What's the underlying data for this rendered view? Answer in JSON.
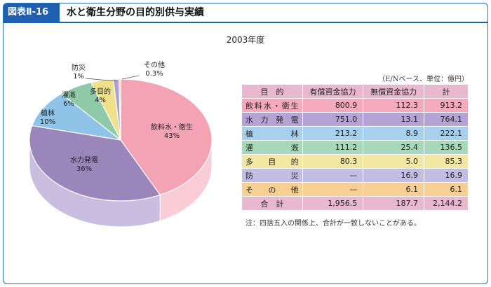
{
  "header": {
    "figure_label": "図表Ⅱ-16",
    "title": "水と衛生分野の目的別供与実績"
  },
  "chart_data": {
    "type": "pie",
    "title": "2003年度",
    "slices": [
      {
        "label": "飲料水・衛生",
        "value": 43,
        "value_label": "43%",
        "color": "#f4a3b4",
        "side_color": "#f9ccd6"
      },
      {
        "label": "水力発電",
        "value": 36,
        "value_label": "36%",
        "color": "#9a86bb",
        "side_color": "#c9bde0"
      },
      {
        "label": "植林",
        "value": 10,
        "value_label": "10%",
        "color": "#8fc3e8",
        "side_color": "#c2def3"
      },
      {
        "label": "灌漑",
        "value": 6,
        "value_label": "6%",
        "color": "#8ec9a8",
        "side_color": "#c0e2cf"
      },
      {
        "label": "多目的",
        "value": 4,
        "value_label": "4%",
        "color": "#f0e08a",
        "side_color": "#f7eebf"
      },
      {
        "label": "防災",
        "value": 1,
        "value_label": "1%",
        "color": "#a9a2d0",
        "side_color": "#d2cde8"
      },
      {
        "label": "その他",
        "value": 0.3,
        "value_label": "0.3%",
        "color": "#f2c27a",
        "side_color": "#f8dfb8"
      }
    ]
  },
  "table": {
    "unit_note": "（E/Nベース、単位：億円）",
    "headers": [
      "目　的",
      "有償資金協力",
      "無償資金協力",
      "計"
    ],
    "rows": [
      {
        "label": "飲料水・衛生",
        "loan": "800.9",
        "grant": "112.3",
        "total": "913.2",
        "color": "#f4a9bd"
      },
      {
        "label": "水力発電",
        "loan": "751.0",
        "grant": "13.1",
        "total": "764.1",
        "color": "#b4a3d4"
      },
      {
        "label": "植林",
        "loan": "213.2",
        "grant": "8.9",
        "total": "222.1",
        "color": "#a7d0ee"
      },
      {
        "label": "灌漑",
        "loan": "111.2",
        "grant": "25.4",
        "total": "136.5",
        "color": "#a7d8b9"
      },
      {
        "label": "多目的",
        "loan": "80.3",
        "grant": "5.0",
        "total": "85.3",
        "color": "#f2e7a3"
      },
      {
        "label": "防災",
        "loan": "—",
        "grant": "16.9",
        "total": "16.9",
        "color": "#c3bde3"
      },
      {
        "label": "その他",
        "loan": "—",
        "grant": "6.1",
        "total": "6.1",
        "color": "#f5cf94"
      }
    ],
    "total_row": {
      "label": "合　計",
      "loan": "1,956.5",
      "grant": "187.7",
      "total": "2,144.2",
      "color": "#e8b8cf"
    }
  },
  "footnote": "注：四捨五入の関係上、合計が一致しないことがある。"
}
